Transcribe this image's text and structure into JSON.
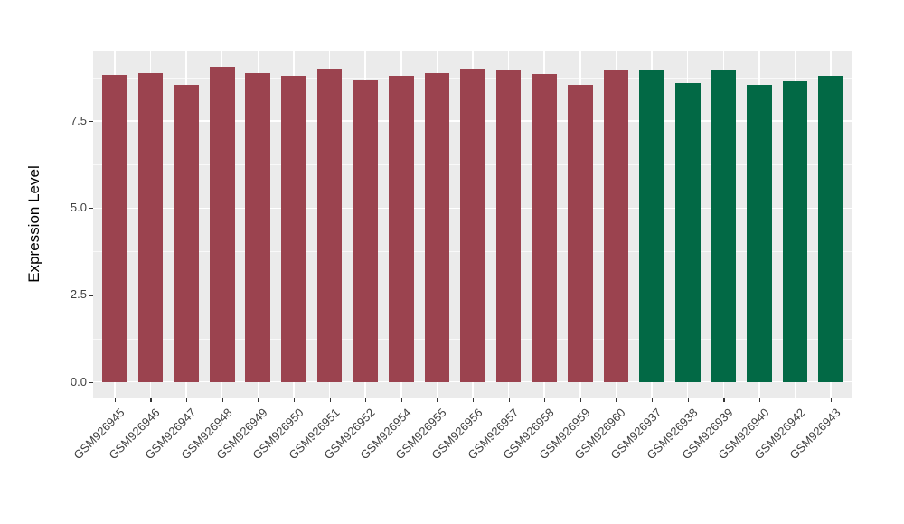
{
  "figure": {
    "background_color": "#FFFFFF",
    "panel_background_color": "#EBEBEB",
    "gridline_color": "#FFFFFF",
    "tick_mark_color": "#333333",
    "axis_text_color": "#404040",
    "axis_title_color": "#000000"
  },
  "chart_data": {
    "type": "bar",
    "title": "",
    "xlabel": "",
    "ylabel": "Expression Level",
    "legend_position": "none",
    "grid": "white major+minor horizontal gridlines and major vertical gridlines on gray panel",
    "ylim": [
      -0.45,
      9.53
    ],
    "yticks": [
      0,
      2.5,
      5,
      7.5
    ],
    "ytick_labels": [
      "0.0",
      "2.5",
      "5.0",
      "7.5"
    ],
    "yticks_minor": [
      1.25,
      3.75,
      6.25,
      8.75
    ],
    "categories": [
      "GSM926945",
      "GSM926946",
      "GSM926947",
      "GSM926948",
      "GSM926949",
      "GSM926950",
      "GSM926951",
      "GSM926952",
      "GSM926954",
      "GSM926955",
      "GSM926956",
      "GSM926957",
      "GSM926958",
      "GSM926959",
      "GSM926960",
      "GSM926937",
      "GSM926938",
      "GSM926939",
      "GSM926940",
      "GSM926942",
      "GSM926943"
    ],
    "values": [
      8.83,
      8.89,
      8.53,
      9.06,
      8.87,
      8.79,
      9.0,
      8.7,
      8.81,
      8.88,
      9.0,
      8.96,
      8.86,
      8.54,
      8.97,
      8.98,
      8.6,
      8.99,
      8.55,
      8.64,
      8.8
    ],
    "groups": [
      "A",
      "A",
      "A",
      "A",
      "A",
      "A",
      "A",
      "A",
      "A",
      "A",
      "A",
      "A",
      "A",
      "A",
      "A",
      "B",
      "B",
      "B",
      "B",
      "B",
      "B"
    ],
    "group_colors": {
      "A": "#9B434F",
      "B": "#026945"
    },
    "bar_relative_width": 0.7
  }
}
